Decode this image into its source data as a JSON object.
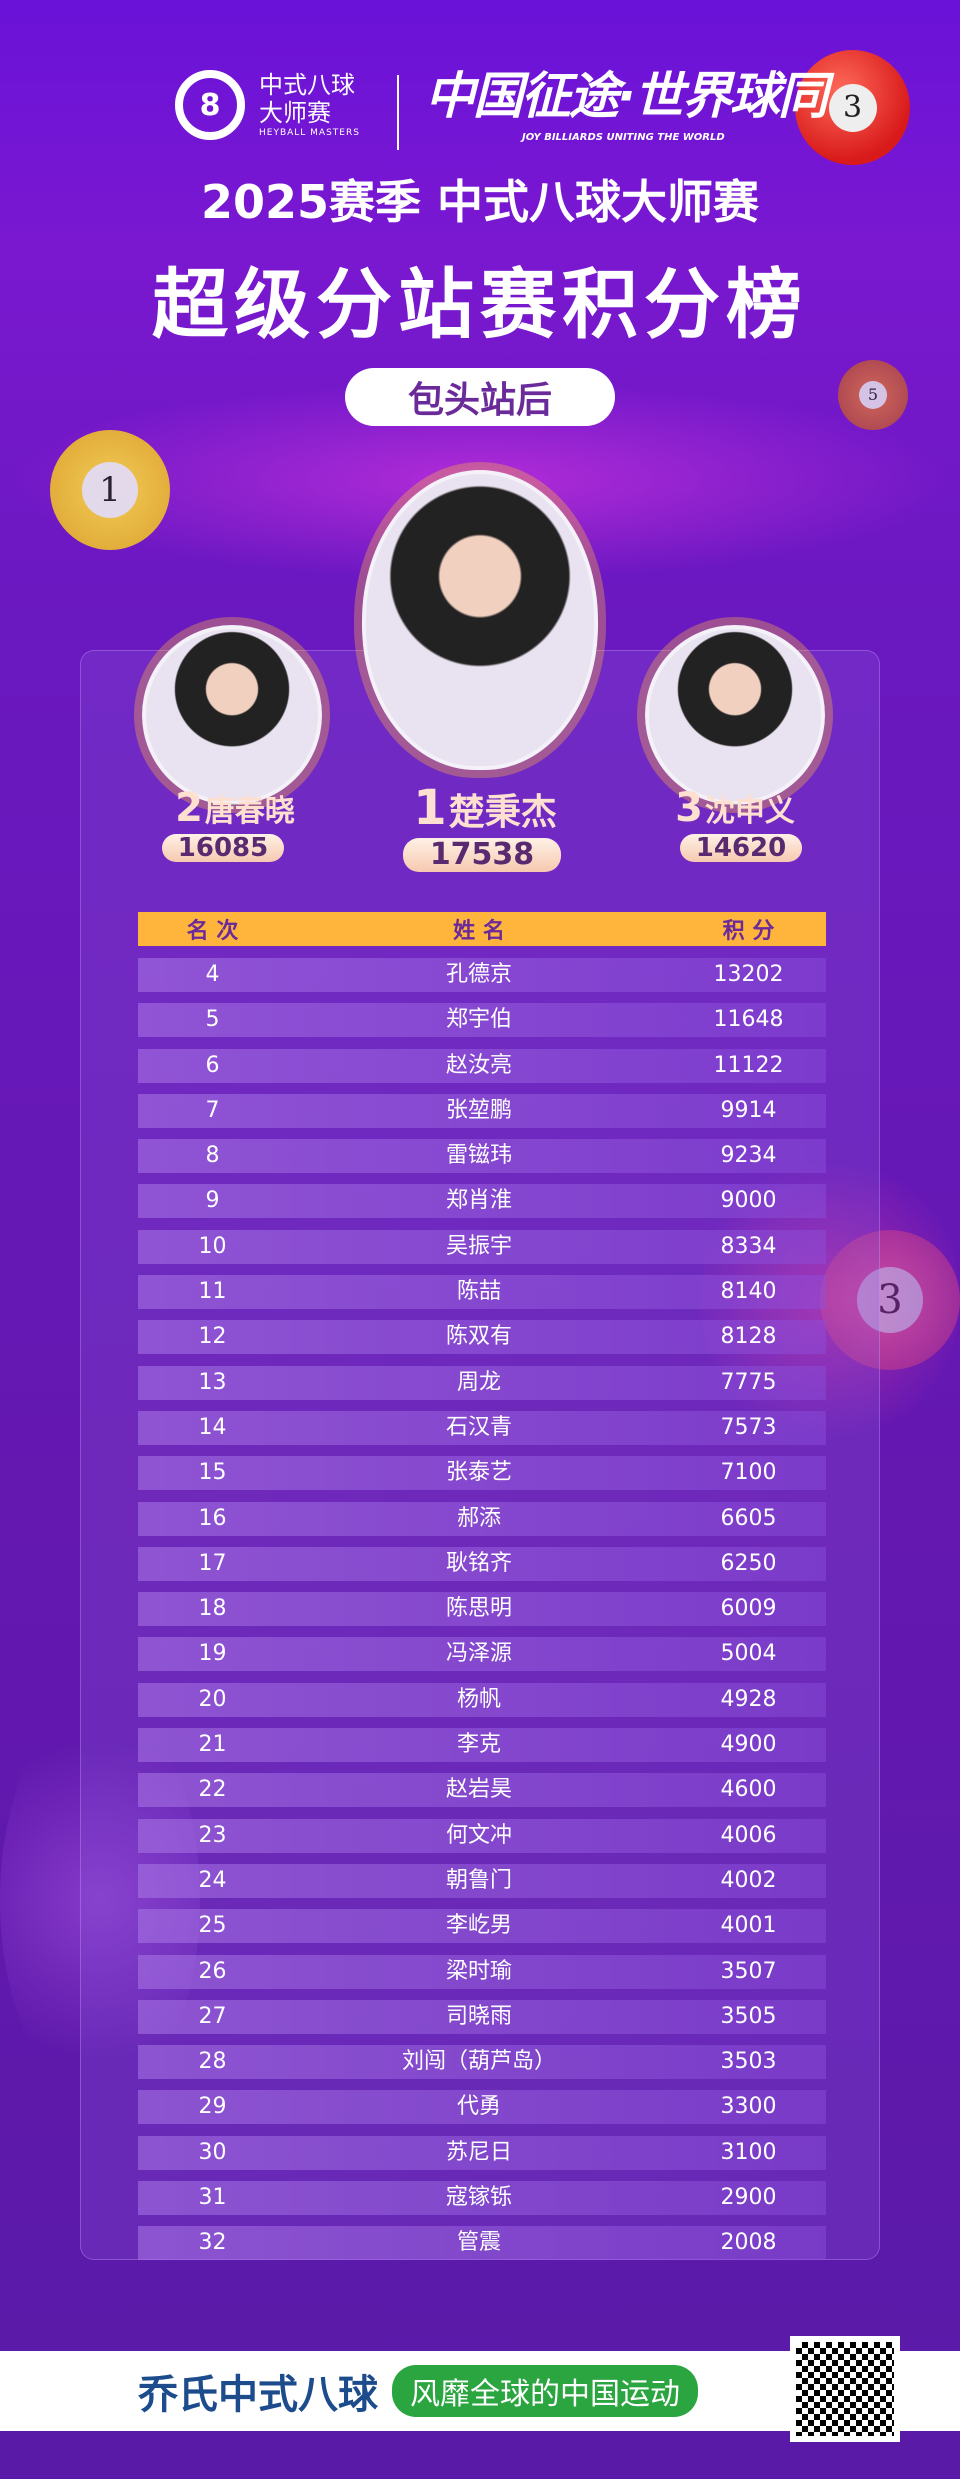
{
  "header": {
    "logo_name": "中式八球大师赛",
    "logo_sub": "HEYBALL MASTERS",
    "slogan": "中国征途·世界球同",
    "slogan_sub": "JOY BILLIARDS UNITING THE WORLD",
    "title_line1": "2025赛季 中式八球大师赛",
    "title_line2": "超级分站赛积分榜",
    "stage": "包头站后"
  },
  "balls": [
    "3",
    "5",
    "1",
    "3"
  ],
  "podium": [
    {
      "rank": "1",
      "name": "楚秉杰",
      "score": "17538"
    },
    {
      "rank": "2",
      "name": "唐春晓",
      "score": "16085"
    },
    {
      "rank": "3",
      "name": "沈申义",
      "score": "14620"
    }
  ],
  "table": {
    "headers": [
      "名 次",
      "姓 名",
      "积 分"
    ],
    "rows": [
      [
        "4",
        "孔德京",
        "13202"
      ],
      [
        "5",
        "郑宇伯",
        "11648"
      ],
      [
        "6",
        "赵汝亮",
        "11122"
      ],
      [
        "7",
        "张堃鹏",
        "9914"
      ],
      [
        "8",
        "雷镃玮",
        "9234"
      ],
      [
        "9",
        "郑肖淮",
        "9000"
      ],
      [
        "10",
        "吴振宇",
        "8334"
      ],
      [
        "11",
        "陈喆",
        "8140"
      ],
      [
        "12",
        "陈双有",
        "8128"
      ],
      [
        "13",
        "周龙",
        "7775"
      ],
      [
        "14",
        "石汉青",
        "7573"
      ],
      [
        "15",
        "张泰艺",
        "7100"
      ],
      [
        "16",
        "郝添",
        "6605"
      ],
      [
        "17",
        "耿铭齐",
        "6250"
      ],
      [
        "18",
        "陈思明",
        "6009"
      ],
      [
        "19",
        "冯泽源",
        "5004"
      ],
      [
        "20",
        "杨帆",
        "4928"
      ],
      [
        "21",
        "李克",
        "4900"
      ],
      [
        "22",
        "赵岩昊",
        "4600"
      ],
      [
        "23",
        "何文冲",
        "4006"
      ],
      [
        "24",
        "朝鲁门",
        "4002"
      ],
      [
        "25",
        "李屹男",
        "4001"
      ],
      [
        "26",
        "梁时瑜",
        "3507"
      ],
      [
        "27",
        "司晓雨",
        "3505"
      ],
      [
        "28",
        "刘闯（葫芦岛）",
        "3503"
      ],
      [
        "29",
        "代勇",
        "3300"
      ],
      [
        "30",
        "苏尼日",
        "3100"
      ],
      [
        "31",
        "寇镓铄",
        "2900"
      ],
      [
        "32",
        "管震",
        "2008"
      ]
    ]
  },
  "footer": {
    "brand": "乔氏中式八球",
    "tagline": "风靡全球的中国运动"
  },
  "colors": {
    "header_bar": "#ffb43c",
    "brand": "#1d4c8c",
    "tag": "#2aa540"
  }
}
